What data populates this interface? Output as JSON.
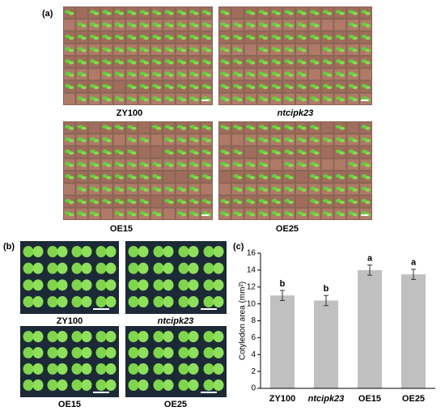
{
  "panels": {
    "a": {
      "label": "(a)",
      "captions": [
        "ZY100",
        "ntcipk23",
        "OE15",
        "OE25"
      ]
    },
    "b": {
      "label": "(b)",
      "captions": [
        "ZY100",
        "ntcipk23",
        "OE15",
        "OE25"
      ]
    },
    "c": {
      "label": "(c)"
    }
  },
  "chart_data": {
    "type": "bar",
    "y_label": "Cotyledon area (mm²)",
    "categories": [
      "ZY100",
      "ntcipk23",
      "OE15",
      "OE25"
    ],
    "values": [
      11.0,
      10.4,
      14.0,
      13.5
    ],
    "errors": [
      0.6,
      0.6,
      0.6,
      0.6
    ],
    "annotations": [
      "b",
      "b",
      "a",
      "a"
    ],
    "color": "#c0c0c0",
    "ylim": [
      0,
      16
    ],
    "yticks": [
      0,
      2,
      4,
      6,
      8,
      10,
      12,
      14,
      16
    ]
  }
}
